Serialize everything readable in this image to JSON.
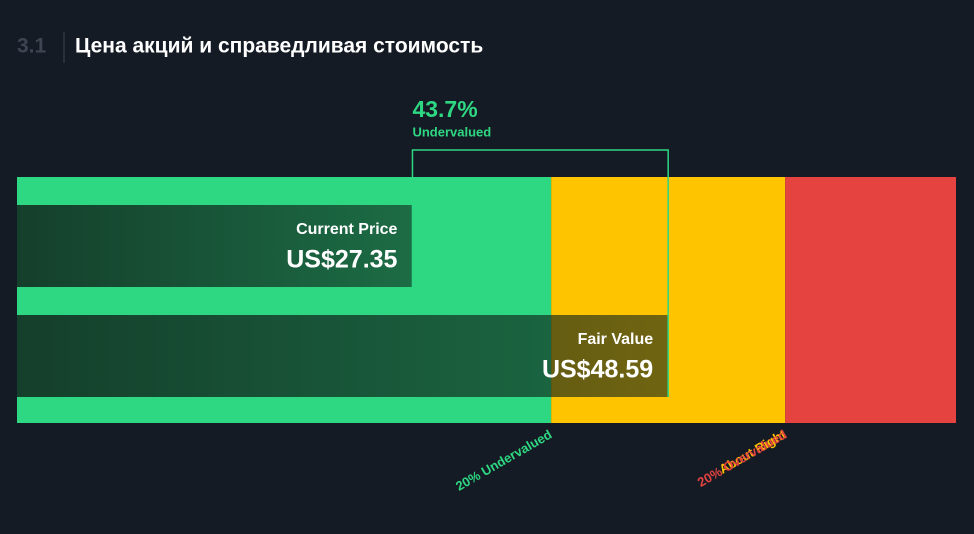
{
  "chart_data": {
    "type": "valuation",
    "section": "3.1",
    "title": "Цена акций и справедливая стоимость",
    "discount_label": "43.7%",
    "discount_text": "Undervalued",
    "categories": [
      "Current Price",
      "Fair Value"
    ],
    "values": [
      27.35,
      48.59
    ],
    "value_labels": [
      "US$27.35",
      "US$48.59"
    ],
    "xlim": [
      -5.5,
      72.5
    ],
    "zone_bounds": [
      38.87,
      58.31
    ],
    "zones": [
      {
        "name": "20% Undervalued",
        "color": "#2ed882"
      },
      {
        "name": "About Right",
        "color": "#ffc400"
      },
      {
        "name": "20% Overvalued",
        "color": "#e5433f"
      }
    ],
    "bracket_color": "#2ed882"
  }
}
